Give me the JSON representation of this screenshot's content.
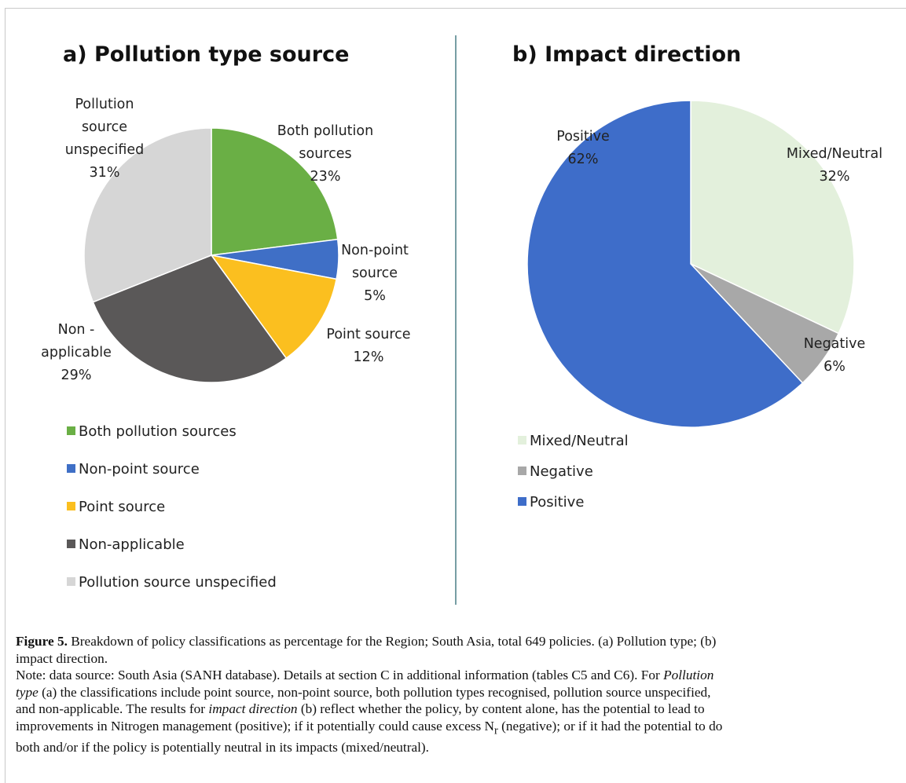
{
  "chart_data": [
    {
      "type": "pie",
      "title": "a)   Pollution type source",
      "slices": [
        {
          "label_lines": [
            "Both pollution",
            "sources",
            "23%"
          ],
          "legend": "Both pollution sources",
          "value": 23,
          "color": "#6aaf45"
        },
        {
          "label_lines": [
            "Non-point",
            "source",
            "5%"
          ],
          "legend": "Non-point source",
          "value": 5,
          "color": "#3f6fc6"
        },
        {
          "label_lines": [
            "Point source",
            "12%"
          ],
          "legend": "Point source",
          "value": 12,
          "color": "#fbbf1f"
        },
        {
          "label_lines": [
            "Non -",
            "applicable",
            "29%"
          ],
          "legend": "Non-applicable",
          "value": 29,
          "color": "#5a5858"
        },
        {
          "label_lines": [
            "Pollution",
            "source",
            "unspecified",
            "31%"
          ],
          "legend": "Pollution source unspecified",
          "value": 31,
          "color": "#d6d6d6"
        }
      ],
      "legend_position": "bottom-left"
    },
    {
      "type": "pie",
      "title": "b)   Impact direction",
      "slices": [
        {
          "label_lines": [
            "Mixed/Neutral",
            "32%"
          ],
          "legend": "Mixed/Neutral",
          "value": 32,
          "color": "#e3f0dc"
        },
        {
          "label_lines": [
            "Negative",
            "6%"
          ],
          "legend": "Negative",
          "value": 6,
          "color": "#a8a8a8"
        },
        {
          "label_lines": [
            "Positive",
            "62%"
          ],
          "legend": "Positive",
          "value": 62,
          "color": "#3e6dc9"
        }
      ],
      "legend_position": "bottom-left"
    }
  ],
  "divider_color": "#4a7f86",
  "caption": {
    "lines": [
      [
        {
          "t": "Figure 5.",
          "b": true
        },
        {
          "t": " Breakdown of policy classifications as percentage for the Region; South Asia, total 649 policies. (a) Pollution type; (b)"
        }
      ],
      [
        {
          "t": "impact direction."
        }
      ],
      [
        {
          "t": "Note: data source: South Asia (SANH database). Details at section C in additional information (tables C5 and C6). For "
        },
        {
          "t": "Pollution",
          "i": true
        }
      ],
      [
        {
          "t": "type",
          "i": true
        },
        {
          "t": " (a) the classifications include point source, non-point source, both pollution types recognised, pollution source unspecified,"
        }
      ],
      [
        {
          "t": "and non-applicable. The results for "
        },
        {
          "t": "impact direction",
          "i": true
        },
        {
          "t": " (b) reflect whether the policy, by content alone, has the potential to lead to"
        }
      ],
      [
        {
          "t": "improvements in Nitrogen management (positive); if it potentially could cause excess N"
        },
        {
          "t": "r",
          "sub": true
        },
        {
          "t": " (negative); or if it had the potential to do"
        }
      ],
      [
        {
          "t": "both and/or if the policy is potentially neutral in its impacts (mixed/neutral)."
        }
      ]
    ]
  }
}
